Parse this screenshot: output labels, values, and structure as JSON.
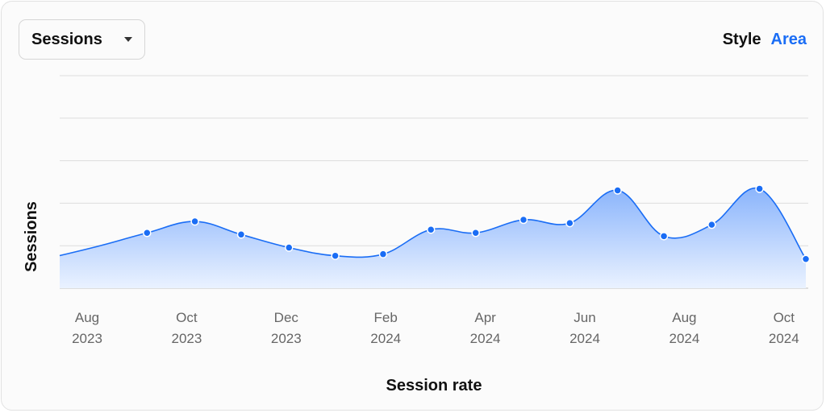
{
  "controls": {
    "metric_select": "Sessions",
    "style_label": "Style",
    "style_value": "Area"
  },
  "chart_data": {
    "type": "area",
    "xlabel": "Session rate",
    "ylabel": "Sessions",
    "x_ticks": [
      [
        "Aug",
        "2023"
      ],
      [
        "Oct",
        "2023"
      ],
      [
        "Dec",
        "2023"
      ],
      [
        "Feb",
        "2024"
      ],
      [
        "Apr",
        "2024"
      ],
      [
        "Jun",
        "2024"
      ],
      [
        "Aug",
        "2024"
      ],
      [
        "Oct",
        "2024"
      ]
    ],
    "x": [
      "2023-07-20",
      "2023-08-20",
      "2023-09-20",
      "2023-10-20",
      "2023-11-20",
      "2023-12-20",
      "2024-01-20",
      "2024-02-20",
      "2024-03-20",
      "2024-04-20",
      "2024-05-20",
      "2024-06-20",
      "2024-07-20",
      "2024-08-20",
      "2024-09-20",
      "2024-10-20"
    ],
    "values": [
      48,
      56,
      63,
      55,
      47,
      42,
      43,
      58,
      56,
      64,
      62,
      82,
      54,
      61,
      83,
      40
    ],
    "ylim": [
      0,
      130
    ],
    "y_gridlines": 6,
    "grid": true,
    "colors": {
      "line": "#1a6df5",
      "area_top": "#8ab4fc",
      "area_bottom": "#eaf2ff",
      "grid": "#dcdcdc"
    }
  }
}
